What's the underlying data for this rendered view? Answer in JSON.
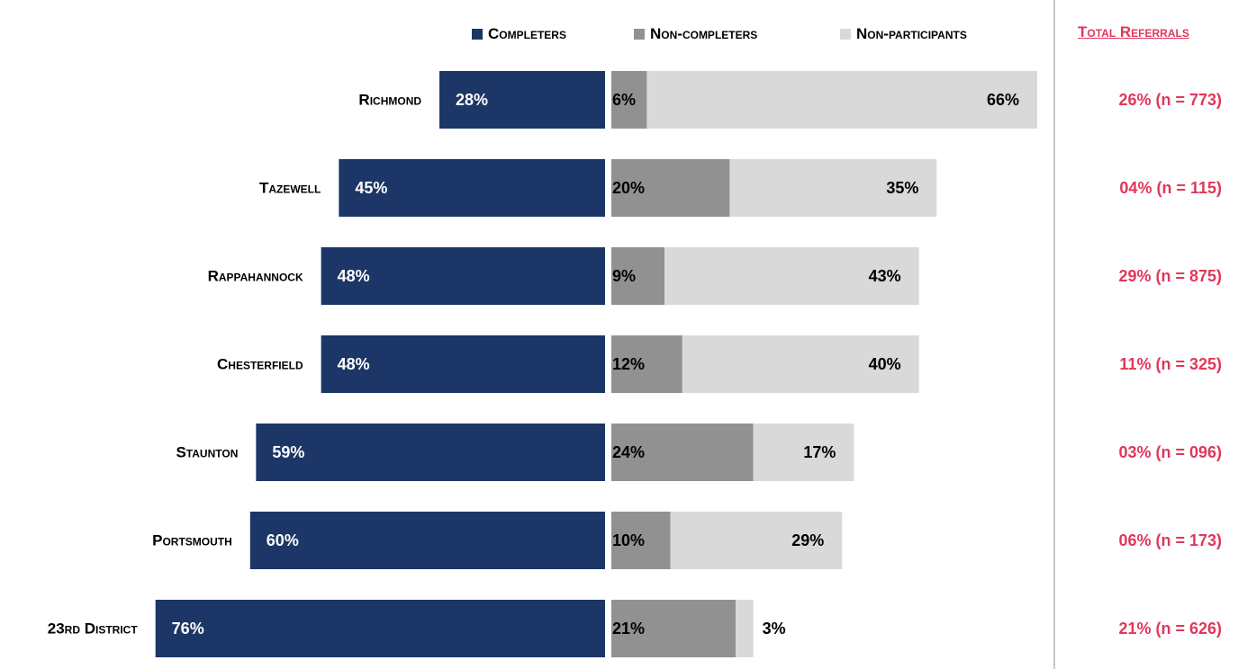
{
  "legend": {
    "completers": "Completers",
    "non_completers": "Non-completers",
    "non_participants": "Non-participants"
  },
  "total_header": "Total Referrals",
  "colors": {
    "completers": "#1b3667",
    "non_completers": "#919191",
    "non_participants": "#d9d9d9",
    "total_text": "#e0375a"
  },
  "chart_data": {
    "type": "bar",
    "orientation": "horizontal-diverging",
    "categories": [
      "Richmond",
      "Tazewell",
      "Rappahannock",
      "Chesterfield",
      "Staunton",
      "Portsmouth",
      "23rd District"
    ],
    "series": [
      {
        "name": "Completers",
        "values": [
          28,
          45,
          48,
          48,
          59,
          60,
          76
        ]
      },
      {
        "name": "Non-completers",
        "values": [
          6,
          20,
          9,
          12,
          24,
          10,
          21
        ]
      },
      {
        "name": "Non-participants",
        "values": [
          66,
          35,
          43,
          40,
          17,
          29,
          3
        ]
      }
    ],
    "value_labels": {
      "completers": [
        "28%",
        "45%",
        "48%",
        "48%",
        "59%",
        "60%",
        "76%"
      ],
      "non_completers": [
        "6%",
        "20%",
        "9%",
        "12%",
        "24%",
        "10%",
        "21%"
      ],
      "non_participants": [
        "66%",
        "35%",
        "43%",
        "40%",
        "17%",
        "29%",
        "3%"
      ]
    },
    "total_referrals": [
      "26% (n = 773)",
      "04% (n = 115)",
      "29% (n = 875)",
      "11% (n = 325)",
      "03% (n = 096)",
      "06% (n = 173)",
      "21% (n = 626)"
    ],
    "legend_position": "top",
    "grid": false
  }
}
